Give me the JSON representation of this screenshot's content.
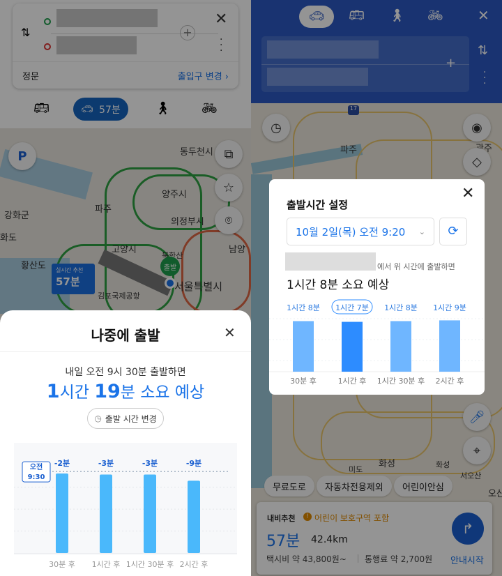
{
  "left": {
    "route": {
      "origin_placeholder": "",
      "destination_placeholder": "",
      "entrance_label": "정문",
      "change_entrance": "출입구 변경 ›"
    },
    "modes": [
      {
        "icon": "bus-icon"
      },
      {
        "icon": "car-icon",
        "label": "57분",
        "active": true
      },
      {
        "icon": "walk-icon"
      },
      {
        "icon": "bike-icon"
      }
    ],
    "map_labels": [
      "동두천시",
      "양주시",
      "파주",
      "강화군",
      "의정부시",
      "고양시",
      "북한산",
      "황산도",
      "남양",
      "서울특별시",
      "김포국제공항",
      "화도"
    ],
    "start_pin": "출발",
    "realtime_badge": {
      "title": "실시간 추천",
      "value": "57분"
    },
    "parking_label": "P",
    "sheet": {
      "title": "나중에 출발",
      "subtitle": "내일 오전 9시 30분 출발하면",
      "estimate_parts": [
        "1",
        "시간 ",
        "19",
        "분 소요 예상"
      ],
      "change_time_button": "출발 시간 변경",
      "current_marker": [
        "오전",
        "9:30"
      ]
    },
    "chart_data": {
      "type": "bar",
      "categories": [
        "30분 후",
        "1시간 후",
        "1시간 30분 후",
        "2시간 후"
      ],
      "values": [
        77,
        76,
        76,
        70
      ],
      "data_labels": [
        "-2분",
        "-3분",
        "-3분",
        "-9분"
      ],
      "reference": {
        "label": "오전 9:30",
        "value": 79
      },
      "ylim": [
        0,
        100
      ],
      "color": "#4ab8fb",
      "grid": true
    }
  },
  "right": {
    "modes": [
      {
        "icon": "car-icon",
        "active": true
      },
      {
        "icon": "bus-icon"
      },
      {
        "icon": "walk-icon"
      },
      {
        "icon": "bike-icon"
      }
    ],
    "map_labels": [
      "파주",
      "광주",
      "화성",
      "미도",
      "화성",
      "서오산",
      "오산"
    ],
    "highway_shield": "17",
    "dialog": {
      "title": "출발시간 설정",
      "datetime": "10월 2일(목) 오전 9:20",
      "from_suffix": "에서 위 시간에 출발하면",
      "estimate": "1시간 8분 소요 예상"
    },
    "chart_data": {
      "type": "bar",
      "categories": [
        "30분 후",
        "1시간 후",
        "1시간 30분 후",
        "2시간 후"
      ],
      "values": [
        68,
        67,
        68,
        69
      ],
      "data_labels": [
        "1시간 8분",
        "1시간 7분",
        "1시간 8분",
        "1시간 9분"
      ],
      "highlight_index": 1,
      "ylim": [
        0,
        90
      ],
      "colors": {
        "normal": "#6fb6ff",
        "highlight": "#2d8cff"
      },
      "grid": true
    },
    "filters": [
      "무료도로",
      "자동차전용제외",
      "어린이안심"
    ],
    "route_card": {
      "tag": "내비추천",
      "warning": "어린이 보호구역 포함",
      "time": "57분",
      "distance": "42.4km",
      "taxi": "택시비 약 43,800원~",
      "toll": "통행료 약 2,700원",
      "start_button": "안내시작"
    }
  },
  "colors": {
    "accent": "#1a73e8",
    "header_blue": "#2b59c3",
    "warning": "#e08a00"
  }
}
